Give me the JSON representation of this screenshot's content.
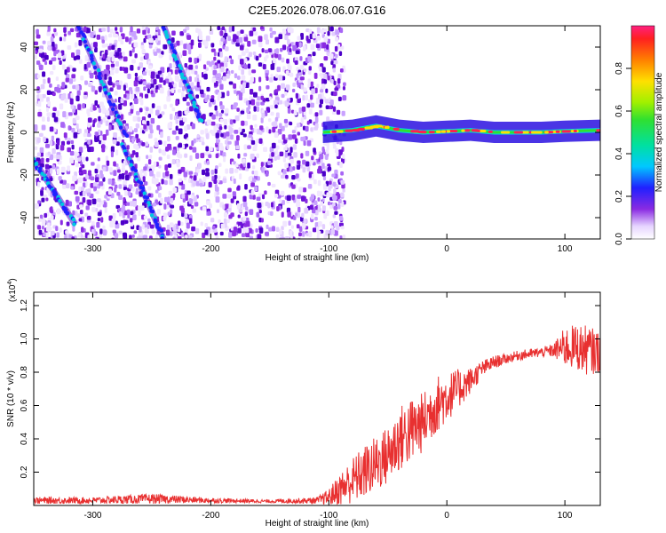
{
  "figure_title": "C2E5.2026.078.06.07.G16",
  "chart_data": [
    {
      "type": "heatmap",
      "title": "C2E5.2026.078.06.07.G16",
      "xlabel": "Height of straight line (km)",
      "ylabel": "Frequency (Hz)",
      "xlim": [
        -350,
        130
      ],
      "ylim": [
        -50,
        50
      ],
      "xticks": [
        -300,
        -200,
        -100,
        0,
        100
      ],
      "xtick_labels": [
        "-300",
        "-200",
        "-100",
        "0",
        "100"
      ],
      "yticks": [
        -40,
        -20,
        0,
        20,
        40
      ],
      "ytick_labels": [
        "-40",
        "-20",
        "0",
        "20",
        "40"
      ],
      "colorbar": {
        "label": "Normalized spectral amplitude",
        "range": [
          0,
          1
        ],
        "ticks": [
          0.0,
          0.2,
          0.4,
          0.6,
          0.8
        ],
        "tick_labels": [
          "0.0",
          "0.2",
          "0.4",
          "0.6",
          "0.8"
        ]
      },
      "features": {
        "noise_region_x": [
          -350,
          -88
        ],
        "signal_start_x": -105,
        "diagonal_tracks": [
          {
            "x0": -312,
            "y0": 50,
            "x1": -272,
            "y1": -2
          },
          {
            "x0": -275,
            "y0": -5,
            "x1": -240,
            "y1": -50
          },
          {
            "x0": -240,
            "y0": 50,
            "x1": -208,
            "y1": 5
          },
          {
            "x0": -350,
            "y0": -13,
            "x1": -315,
            "y1": -43
          }
        ],
        "carrier_points": [
          [
            -105,
            0
          ],
          [
            -80,
            1
          ],
          [
            -60,
            3
          ],
          [
            -40,
            1
          ],
          [
            -20,
            0
          ],
          [
            0,
            0.5
          ],
          [
            20,
            1
          ],
          [
            40,
            0
          ],
          [
            60,
            0
          ],
          [
            80,
            0
          ],
          [
            100,
            0.5
          ],
          [
            130,
            1
          ]
        ]
      }
    },
    {
      "type": "line",
      "xlabel": "Height of straight line (km)",
      "ylabel": "SNR (10 * v/v)",
      "y_multiplier_label": "(x10",
      "y_multiplier_exp": "4",
      "y_multiplier_close": ")",
      "xlim": [
        -350,
        130
      ],
      "ylim": [
        0,
        1.28
      ],
      "xticks": [
        -300,
        -200,
        -100,
        0,
        100
      ],
      "xtick_labels": [
        "-300",
        "-200",
        "-100",
        "0",
        "100"
      ],
      "yticks": [
        0.2,
        0.4,
        0.6,
        0.8,
        1.0,
        1.2
      ],
      "ytick_labels": [
        "0.2",
        "0.4",
        "0.6",
        "0.8",
        "1.0",
        "1.2"
      ],
      "color": "#e83030",
      "series": [
        {
          "name": "SNR",
          "x": [
            -350,
            -300,
            -250,
            -200,
            -150,
            -110,
            -100,
            -90,
            -80,
            -70,
            -60,
            -50,
            -40,
            -30,
            -20,
            -10,
            0,
            10,
            20,
            30,
            40,
            50,
            60,
            70,
            80,
            90,
            100,
            110,
            120,
            130
          ],
          "y": [
            0.03,
            0.03,
            0.04,
            0.03,
            0.025,
            0.03,
            0.05,
            0.1,
            0.15,
            0.2,
            0.25,
            0.3,
            0.4,
            0.45,
            0.5,
            0.6,
            0.65,
            0.7,
            0.75,
            0.82,
            0.86,
            0.88,
            0.9,
            0.91,
            0.92,
            0.93,
            0.95,
            0.95,
            0.93,
            0.92
          ],
          "spread": [
            0.02,
            0.02,
            0.03,
            0.015,
            0.01,
            0.02,
            0.05,
            0.1,
            0.14,
            0.16,
            0.17,
            0.18,
            0.2,
            0.2,
            0.18,
            0.18,
            0.15,
            0.12,
            0.08,
            0.05,
            0.04,
            0.03,
            0.03,
            0.03,
            0.03,
            0.04,
            0.12,
            0.14,
            0.15,
            0.12
          ]
        }
      ]
    }
  ]
}
